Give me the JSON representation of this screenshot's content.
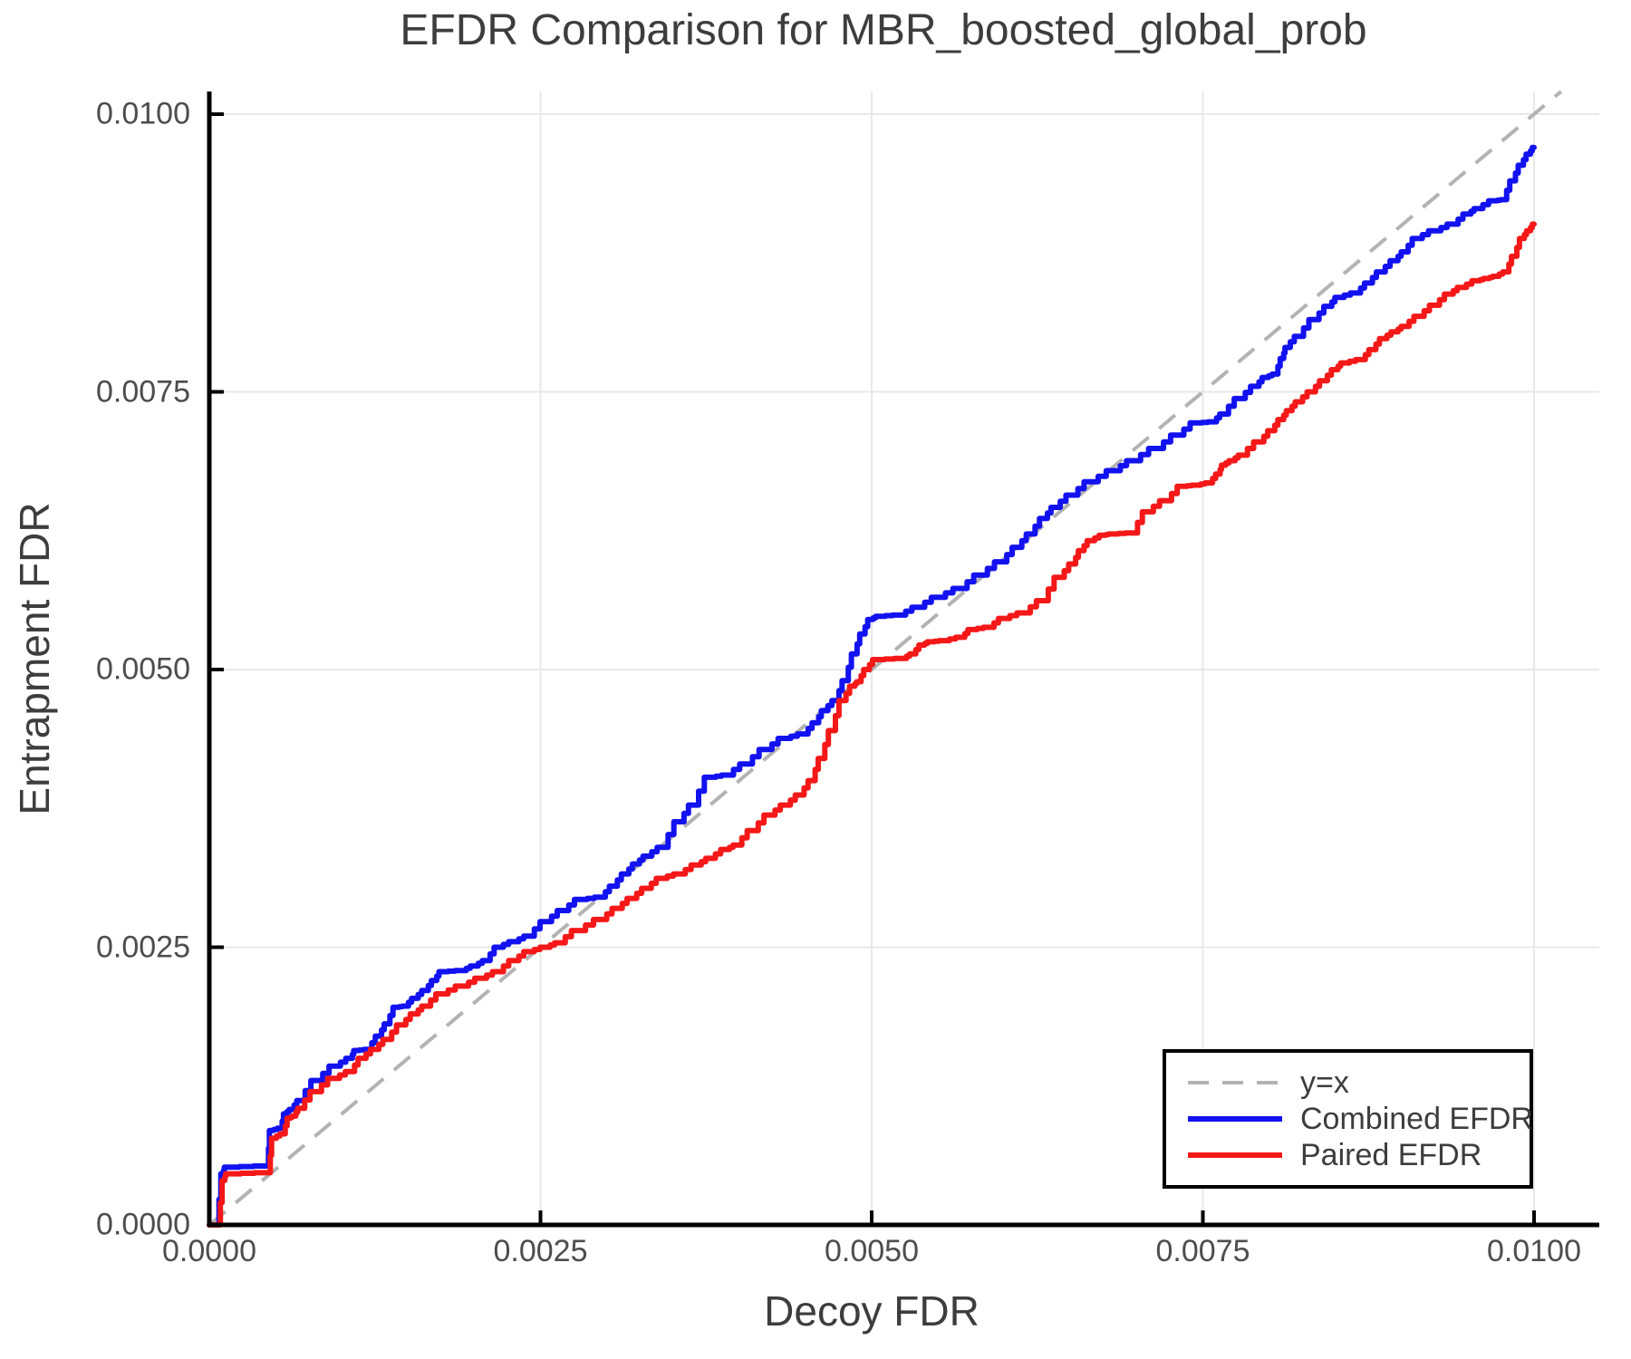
{
  "title": "EFDR Comparison for MBR_boosted_global_prob",
  "legend": {
    "entries": [
      {
        "label": "y=x",
        "color": "#b3b3b3",
        "dash": "23 15",
        "width": 4
      },
      {
        "label": "Combined EFDR",
        "color": "#1212f0",
        "dash": "",
        "width": 6
      },
      {
        "label": "Paired EFDR",
        "color": "#f51818",
        "dash": "",
        "width": 6
      }
    ]
  },
  "colors": {
    "grid": "#e8e8e8",
    "spine": "#000000",
    "reference": "#b3b3b3",
    "combined": "#1212f0",
    "paired": "#f51818",
    "tick_text": "#4d4d4d",
    "title_text": "#3d3d3d"
  },
  "chart_data": {
    "type": "line",
    "title": "EFDR Comparison for MBR_boosted_global_prob",
    "xlabel": "Decoy FDR",
    "ylabel": "Entrapment FDR",
    "xlim": [
      0.0,
      0.0105
    ],
    "ylim": [
      0.0,
      0.0102
    ],
    "grid": true,
    "legend_position": "lower right",
    "x_ticks": {
      "values": [
        0.0,
        0.0025,
        0.005,
        0.0075,
        0.01
      ],
      "labels": [
        "0.0000",
        "0.0025",
        "0.0050",
        "0.0075",
        "0.0100"
      ]
    },
    "y_ticks": {
      "values": [
        0.0,
        0.0025,
        0.005,
        0.0075,
        0.01
      ],
      "labels": [
        "0.0000",
        "0.0025",
        "0.0050",
        "0.0075",
        "0.0100"
      ]
    },
    "reference_line": {
      "label": "y=x",
      "style": "dashed",
      "from": [
        0.0,
        0.0
      ],
      "to": [
        0.010204,
        0.010204
      ]
    },
    "series": [
      {
        "name": "Combined EFDR",
        "points": [
          [
            0.0,
            0.0
          ],
          [
            6e-05,
            0.0
          ],
          [
            0.0001,
            0.00046
          ],
          [
            0.00012,
            0.00052
          ],
          [
            0.00044,
            0.00053
          ],
          [
            0.00046,
            0.00085
          ],
          [
            0.00054,
            0.00087
          ],
          [
            0.00057,
            0.001
          ],
          [
            0.00062,
            0.00104
          ],
          [
            0.00068,
            0.00112
          ],
          [
            0.00081,
            0.0013
          ],
          [
            0.00095,
            0.00143
          ],
          [
            0.00107,
            0.0015
          ],
          [
            0.0011,
            0.00157
          ],
          [
            0.0012,
            0.00158
          ],
          [
            0.00128,
            0.0017
          ],
          [
            0.00134,
            0.00181
          ],
          [
            0.00141,
            0.00196
          ],
          [
            0.00148,
            0.00197
          ],
          [
            0.00155,
            0.00204
          ],
          [
            0.00163,
            0.00211
          ],
          [
            0.0017,
            0.0022
          ],
          [
            0.00175,
            0.00228
          ],
          [
            0.00191,
            0.00229
          ],
          [
            0.002,
            0.00233
          ],
          [
            0.00209,
            0.00238
          ],
          [
            0.00218,
            0.0025
          ],
          [
            0.0023,
            0.00255
          ],
          [
            0.00241,
            0.0026
          ],
          [
            0.00254,
            0.00273
          ],
          [
            0.00267,
            0.00283
          ],
          [
            0.0028,
            0.00293
          ],
          [
            0.00296,
            0.00295
          ],
          [
            0.00305,
            0.00305
          ],
          [
            0.00314,
            0.00316
          ],
          [
            0.00322,
            0.00325
          ],
          [
            0.0033,
            0.00332
          ],
          [
            0.00342,
            0.0034
          ],
          [
            0.00355,
            0.00363
          ],
          [
            0.00365,
            0.00378
          ],
          [
            0.00378,
            0.00403
          ],
          [
            0.00391,
            0.00405
          ],
          [
            0.00405,
            0.00415
          ],
          [
            0.0042,
            0.00428
          ],
          [
            0.00434,
            0.00438
          ],
          [
            0.00449,
            0.00442
          ],
          [
            0.00458,
            0.00452
          ],
          [
            0.00464,
            0.00463
          ],
          [
            0.00473,
            0.00472
          ],
          [
            0.0048,
            0.0049
          ],
          [
            0.00487,
            0.00514
          ],
          [
            0.00493,
            0.00532
          ],
          [
            0.00499,
            0.00545
          ],
          [
            0.00505,
            0.00548
          ],
          [
            0.00521,
            0.00549
          ],
          [
            0.00535,
            0.00556
          ],
          [
            0.0055,
            0.00565
          ],
          [
            0.00567,
            0.00573
          ],
          [
            0.00582,
            0.00585
          ],
          [
            0.00598,
            0.00597
          ],
          [
            0.0061,
            0.0061
          ],
          [
            0.0062,
            0.00622
          ],
          [
            0.0063,
            0.00636
          ],
          [
            0.00638,
            0.00646
          ],
          [
            0.00651,
            0.00657
          ],
          [
            0.00665,
            0.00669
          ],
          [
            0.00683,
            0.00679
          ],
          [
            0.00697,
            0.00688
          ],
          [
            0.00715,
            0.00699
          ],
          [
            0.00731,
            0.00711
          ],
          [
            0.00745,
            0.00722
          ],
          [
            0.00758,
            0.00723
          ],
          [
            0.00765,
            0.0073
          ],
          [
            0.00778,
            0.00744
          ],
          [
            0.0079,
            0.00755
          ],
          [
            0.00797,
            0.00763
          ],
          [
            0.00805,
            0.00766
          ],
          [
            0.0081,
            0.0078
          ],
          [
            0.00813,
            0.0079
          ],
          [
            0.00822,
            0.008
          ],
          [
            0.00834,
            0.00815
          ],
          [
            0.00845,
            0.00827
          ],
          [
            0.00852,
            0.00835
          ],
          [
            0.00866,
            0.00839
          ],
          [
            0.00875,
            0.00848
          ],
          [
            0.00884,
            0.00858
          ],
          [
            0.00895,
            0.00868
          ],
          [
            0.00902,
            0.00876
          ],
          [
            0.00911,
            0.00888
          ],
          [
            0.00925,
            0.00895
          ],
          [
            0.00939,
            0.00901
          ],
          [
            0.0095,
            0.0091
          ],
          [
            0.00957,
            0.00915
          ],
          [
            0.0097,
            0.00922
          ],
          [
            0.00977,
            0.00923
          ],
          [
            0.00984,
            0.0094
          ],
          [
            0.0099,
            0.00954
          ],
          [
            0.00996,
            0.00964
          ],
          [
            0.01,
            0.0097
          ]
        ]
      },
      {
        "name": "Paired EFDR",
        "points": [
          [
            0.0,
            0.0
          ],
          [
            7e-05,
            0.0
          ],
          [
            0.00011,
            0.0004
          ],
          [
            0.00013,
            0.00046
          ],
          [
            0.00045,
            0.00047
          ],
          [
            0.00048,
            0.00078
          ],
          [
            0.00056,
            0.00082
          ],
          [
            0.0006,
            0.00096
          ],
          [
            0.00064,
            0.00098
          ],
          [
            0.00068,
            0.00105
          ],
          [
            0.0008,
            0.0012
          ],
          [
            0.00094,
            0.00132
          ],
          [
            0.00107,
            0.00138
          ],
          [
            0.00115,
            0.0015
          ],
          [
            0.00125,
            0.00158
          ],
          [
            0.00134,
            0.00167
          ],
          [
            0.00145,
            0.0018
          ],
          [
            0.00155,
            0.0019
          ],
          [
            0.00163,
            0.00197
          ],
          [
            0.00175,
            0.00208
          ],
          [
            0.00191,
            0.00215
          ],
          [
            0.00205,
            0.00222
          ],
          [
            0.00218,
            0.00228
          ],
          [
            0.0023,
            0.00238
          ],
          [
            0.00241,
            0.00246
          ],
          [
            0.00254,
            0.0025
          ],
          [
            0.00264,
            0.00254
          ],
          [
            0.00278,
            0.00265
          ],
          [
            0.00296,
            0.00275
          ],
          [
            0.00308,
            0.00285
          ],
          [
            0.00319,
            0.00294
          ],
          [
            0.0033,
            0.00303
          ],
          [
            0.00341,
            0.00312
          ],
          [
            0.00355,
            0.00316
          ],
          [
            0.00368,
            0.00324
          ],
          [
            0.00378,
            0.0033
          ],
          [
            0.0039,
            0.00338
          ],
          [
            0.00398,
            0.00342
          ],
          [
            0.0041,
            0.00355
          ],
          [
            0.00423,
            0.00369
          ],
          [
            0.00435,
            0.00378
          ],
          [
            0.00446,
            0.00387
          ],
          [
            0.00455,
            0.004
          ],
          [
            0.00462,
            0.0042
          ],
          [
            0.0047,
            0.00445
          ],
          [
            0.00478,
            0.00472
          ],
          [
            0.00486,
            0.00485
          ],
          [
            0.0049,
            0.00489
          ],
          [
            0.00496,
            0.005
          ],
          [
            0.00503,
            0.00509
          ],
          [
            0.00524,
            0.0051
          ],
          [
            0.00531,
            0.00514
          ],
          [
            0.00538,
            0.00522
          ],
          [
            0.00544,
            0.00525
          ],
          [
            0.00554,
            0.00526
          ],
          [
            0.00568,
            0.00529
          ],
          [
            0.00575,
            0.00536
          ],
          [
            0.00589,
            0.00538
          ],
          [
            0.00599,
            0.00546
          ],
          [
            0.00615,
            0.00551
          ],
          [
            0.00629,
            0.00562
          ],
          [
            0.00642,
            0.00583
          ],
          [
            0.00652,
            0.00595
          ],
          [
            0.00658,
            0.00607
          ],
          [
            0.00665,
            0.00616
          ],
          [
            0.00675,
            0.00621
          ],
          [
            0.00681,
            0.00622
          ],
          [
            0.00697,
            0.00623
          ],
          [
            0.00708,
            0.00642
          ],
          [
            0.00722,
            0.00652
          ],
          [
            0.00735,
            0.00665
          ],
          [
            0.00745,
            0.00666
          ],
          [
            0.00755,
            0.00668
          ],
          [
            0.00762,
            0.00676
          ],
          [
            0.00765,
            0.00684
          ],
          [
            0.00772,
            0.00688
          ],
          [
            0.00779,
            0.00693
          ],
          [
            0.00793,
            0.00705
          ],
          [
            0.00802,
            0.00715
          ],
          [
            0.00809,
            0.00725
          ],
          [
            0.00815,
            0.00733
          ],
          [
            0.00822,
            0.00741
          ],
          [
            0.00832,
            0.0075
          ],
          [
            0.00841,
            0.0076
          ],
          [
            0.0085,
            0.0077
          ],
          [
            0.00856,
            0.00776
          ],
          [
            0.0087,
            0.00779
          ],
          [
            0.00878,
            0.00788
          ],
          [
            0.00886,
            0.00798
          ],
          [
            0.00895,
            0.00804
          ],
          [
            0.00902,
            0.00809
          ],
          [
            0.00913,
            0.00818
          ],
          [
            0.00925,
            0.00828
          ],
          [
            0.00936,
            0.00838
          ],
          [
            0.00945,
            0.00844
          ],
          [
            0.00957,
            0.0085
          ],
          [
            0.00964,
            0.00852
          ],
          [
            0.00971,
            0.00854
          ],
          [
            0.00979,
            0.00858
          ],
          [
            0.00985,
            0.00872
          ],
          [
            0.00991,
            0.00888
          ],
          [
            0.00996,
            0.00895
          ],
          [
            0.01,
            0.00901
          ]
        ]
      }
    ]
  }
}
